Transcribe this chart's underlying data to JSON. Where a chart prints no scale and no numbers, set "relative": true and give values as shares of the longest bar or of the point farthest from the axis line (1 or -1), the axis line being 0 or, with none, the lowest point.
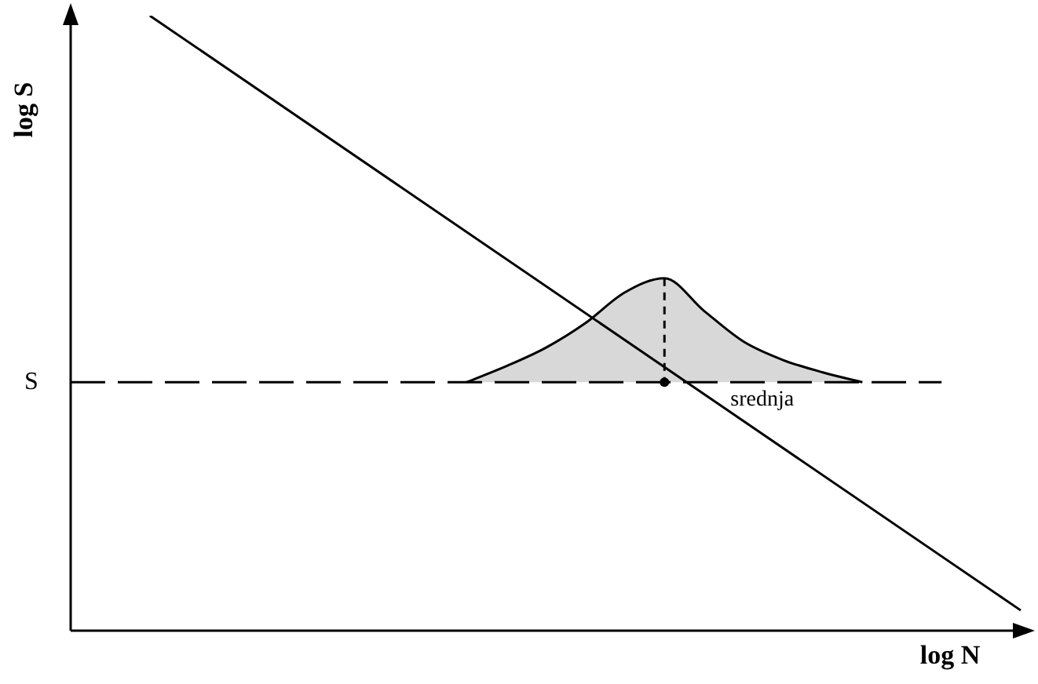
{
  "chart_data": {
    "type": "line",
    "relative": true,
    "xlabel": "log N",
    "ylabel": "log S",
    "grid": false,
    "legend": false,
    "marker": "none",
    "categories": [
      null,
      null,
      null,
      null,
      null,
      null,
      null,
      null,
      null,
      null,
      null,
      null,
      null,
      null,
      null,
      null,
      null,
      null,
      null,
      null,
      null,
      null,
      null,
      null,
      null
    ],
    "series": [
      {
        "color": "#000000",
        "line_style": "solid",
        "values": [
          null,
          null,
          1,
          null,
          null,
          null,
          null,
          null,
          null,
          null,
          null,
          null,
          null,
          null,
          null,
          null,
          null,
          null,
          null,
          null,
          null,
          null,
          null,
          null,
          0.033
        ]
      },
      {
        "type": "area",
        "color": "#d8d8d8",
        "line_style": "solid",
        "values": [
          null,
          null,
          null,
          null,
          null,
          null,
          null,
          null,
          null,
          null,
          0.404,
          0.43,
          0.46,
          0.5,
          0.55,
          0.573,
          0.52,
          0.47,
          0.44,
          0.42,
          0.404,
          null,
          null,
          null,
          null
        ]
      }
    ],
    "ref_lines": [
      {
        "axis": "y",
        "value": 0.404,
        "label": "S",
        "line_style": "dashed",
        "color": "#000000"
      }
    ],
    "annotations": [
      "srednja"
    ]
  }
}
